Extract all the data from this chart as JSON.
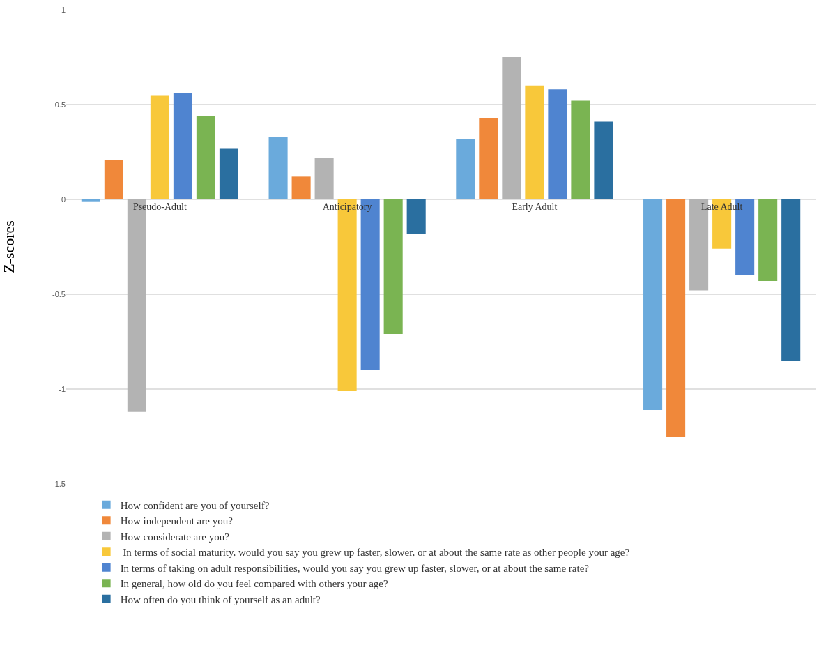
{
  "chart_data": {
    "type": "bar",
    "ylabel": "Z-scores",
    "categories": [
      "Pseudo-Adult",
      "Anticipatory",
      "Early Adult",
      "Late Adult"
    ],
    "series": [
      {
        "name": "How confident are you of yourself?",
        "color": "#6aaadc",
        "values": [
          -0.01,
          0.33,
          0.32,
          -1.11
        ]
      },
      {
        "name": "How independent are you?",
        "color": "#f0883a",
        "values": [
          0.21,
          0.12,
          0.43,
          -1.25
        ]
      },
      {
        "name": "How considerate are you?",
        "color": "#b3b3b3",
        "values": [
          -1.12,
          0.22,
          0.75,
          -0.48
        ]
      },
      {
        "name": " In terms of social maturity, would you say you grew up faster, slower, or at about the same rate as other people your age?",
        "color": "#f8c83a",
        "values": [
          0.55,
          -1.01,
          0.6,
          -0.26
        ]
      },
      {
        "name": "In terms of taking on adult responsibilities, would you say you grew up faster, slower, or at about the same rate?",
        "color": "#4f84d0",
        "values": [
          0.56,
          -0.9,
          0.58,
          -0.4
        ]
      },
      {
        "name": "In general, how old do you feel compared with others your age?",
        "color": "#7ab452",
        "values": [
          0.44,
          -0.71,
          0.52,
          -0.43
        ]
      },
      {
        "name": "How often do you think of yourself as an adult?",
        "color": "#2a6fa0",
        "values": [
          0.27,
          -0.18,
          0.41,
          -0.85
        ]
      }
    ],
    "ylim": [
      -1.5,
      1
    ],
    "yticks": [
      1,
      0.5,
      0,
      -0.5,
      -1,
      -1.5
    ],
    "grid": "y",
    "legend": "bottom"
  }
}
